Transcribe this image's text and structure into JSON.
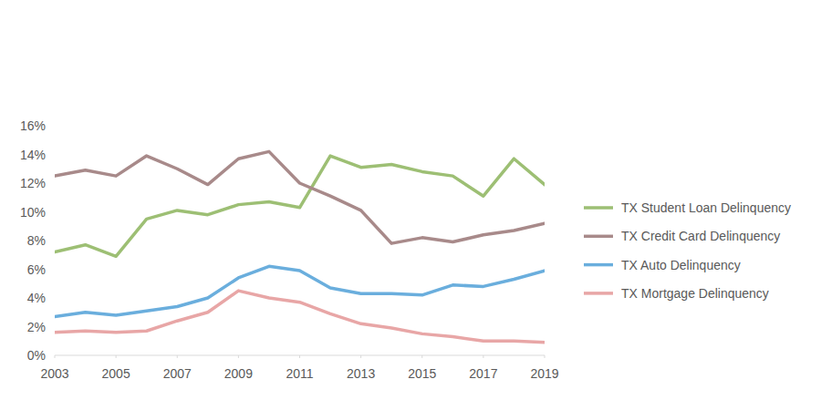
{
  "chart_data": {
    "type": "line",
    "x": [
      2003,
      2004,
      2005,
      2006,
      2007,
      2008,
      2009,
      2010,
      2011,
      2012,
      2013,
      2014,
      2015,
      2016,
      2017,
      2018,
      2019
    ],
    "xlim": [
      2003,
      2019
    ],
    "xticks": [
      2003,
      2005,
      2007,
      2009,
      2011,
      2013,
      2015,
      2017,
      2019
    ],
    "ylim": [
      0,
      16
    ],
    "yticks": [
      {
        "value": 0,
        "label": "0%"
      },
      {
        "value": 2,
        "label": "2%"
      },
      {
        "value": 4,
        "label": "4%"
      },
      {
        "value": 6,
        "label": "6%"
      },
      {
        "value": 8,
        "label": "8%"
      },
      {
        "value": 10,
        "label": "10%"
      },
      {
        "value": 12,
        "label": "12%"
      },
      {
        "value": 14,
        "label": "14%"
      },
      {
        "value": 16,
        "label": "16%"
      }
    ],
    "grid": false,
    "legend": "right",
    "series": [
      {
        "name": "TX Student Loan Delinquency",
        "color": "#9dbf74",
        "values": [
          7.2,
          7.7,
          6.9,
          9.5,
          10.1,
          9.8,
          10.5,
          10.7,
          10.3,
          13.9,
          13.1,
          13.3,
          12.8,
          12.5,
          11.1,
          13.7,
          11.9
        ]
      },
      {
        "name": "TX Credit Card Delinquency",
        "color": "#a88a8a",
        "values": [
          12.5,
          12.9,
          12.5,
          13.9,
          13.0,
          11.9,
          13.7,
          14.2,
          12.0,
          11.1,
          10.1,
          7.8,
          8.2,
          7.9,
          8.4,
          8.7,
          9.2
        ]
      },
      {
        "name": "TX Auto Delinquency",
        "color": "#6aaedd",
        "values": [
          2.7,
          3.0,
          2.8,
          3.1,
          3.4,
          4.0,
          5.4,
          6.2,
          5.9,
          4.7,
          4.3,
          4.3,
          4.2,
          4.9,
          4.8,
          5.3,
          5.9
        ]
      },
      {
        "name": "TX Mortgage Delinquency",
        "color": "#e8a6a6",
        "values": [
          1.6,
          1.7,
          1.6,
          1.7,
          2.4,
          3.0,
          4.5,
          4.0,
          3.7,
          2.9,
          2.2,
          1.9,
          1.5,
          1.3,
          1.0,
          1.0,
          0.9
        ]
      }
    ]
  }
}
